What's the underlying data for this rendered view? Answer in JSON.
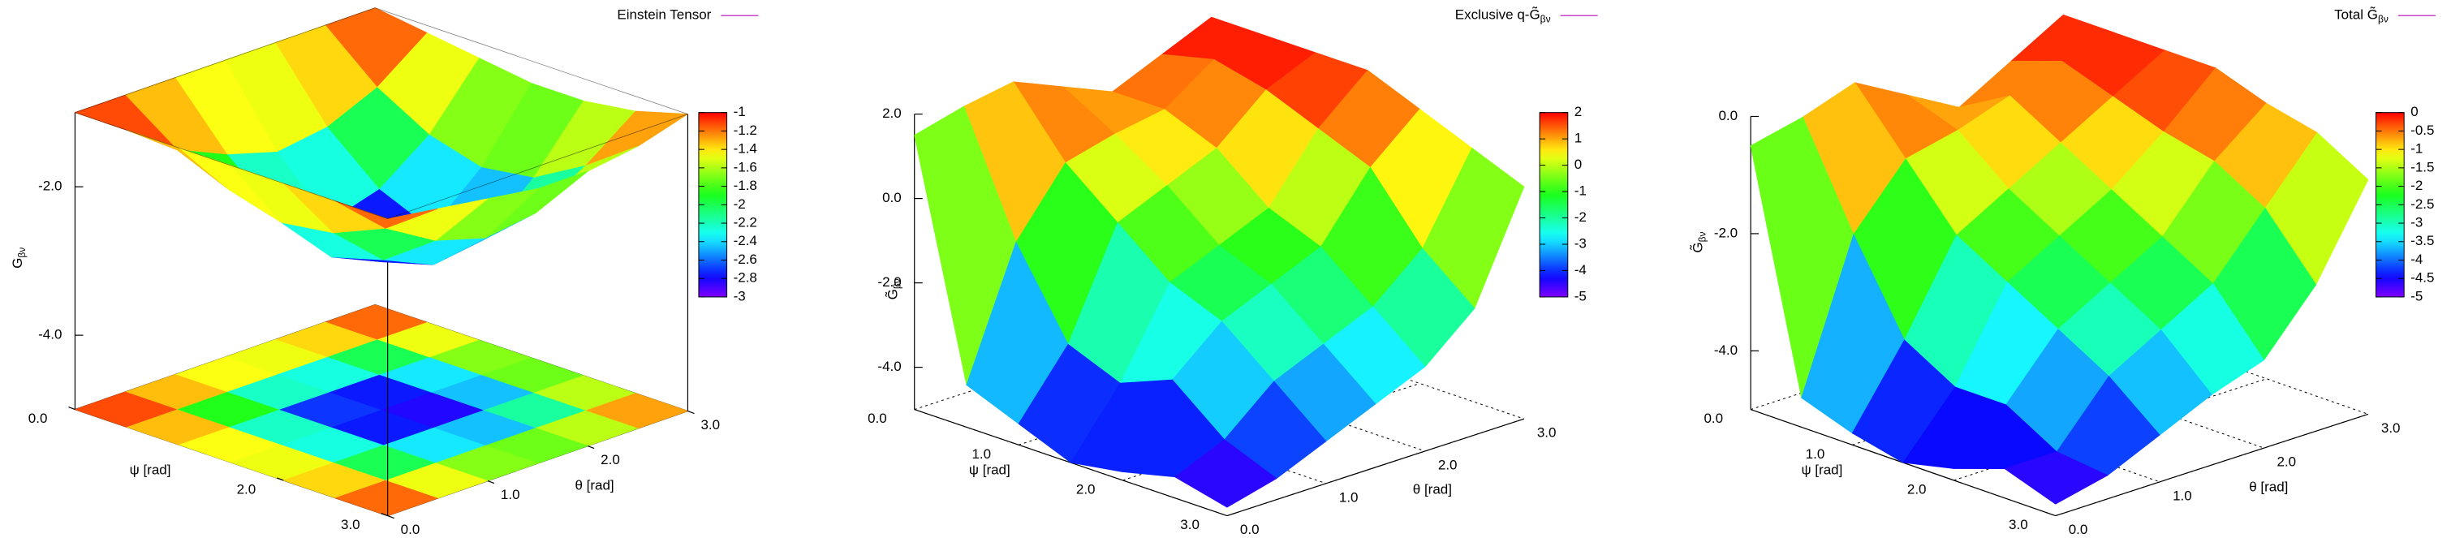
{
  "chart_data": [
    {
      "type": "surface",
      "title": "Einstein Tensor",
      "legend_color": "#cc44cc",
      "xlabel": "ψ [rad]",
      "ylabel": "θ [rad]",
      "zlabel": "G",
      "zlabel_sub": "βν",
      "x": [
        0,
        0.5,
        1,
        1.5,
        2,
        2.5,
        3
      ],
      "y": [
        0,
        0.5,
        1,
        1.5,
        2,
        2.5,
        3
      ],
      "z": [
        [
          -1,
          -1,
          -1,
          -1,
          -1,
          -1,
          -1
        ],
        [
          -1,
          -1.5,
          -1.8,
          -2,
          -1.9,
          -1.6,
          -1.1
        ],
        [
          -1,
          -1.8,
          -2.4,
          -2.7,
          -2.5,
          -2,
          -1.2
        ],
        [
          -1,
          -2,
          -2.7,
          -3,
          -2.8,
          -2.2,
          -1.3
        ],
        [
          -1,
          -1.9,
          -2.5,
          -2.8,
          -2.7,
          -2.1,
          -1.3
        ],
        [
          -1,
          -1.6,
          -2,
          -2.2,
          -2.1,
          -1.7,
          -1.2
        ],
        [
          -1,
          -1.1,
          -1.2,
          -1.3,
          -1.3,
          -1.2,
          -1
        ]
      ],
      "xlim": [
        0,
        3
      ],
      "ylim": [
        0,
        3
      ],
      "zlim": [
        -5,
        -1
      ],
      "xticks": [
        {
          "value": 0,
          "label": "0.0"
        },
        {
          "value": 2,
          "label": "2.0"
        },
        {
          "value": 3,
          "label": "3.0"
        }
      ],
      "yticks": [
        {
          "value": 0,
          "label": "0.0"
        },
        {
          "value": 1,
          "label": "1.0"
        },
        {
          "value": 2,
          "label": "2.0"
        },
        {
          "value": 3,
          "label": "3.0"
        }
      ],
      "zticks": [
        {
          "value": -4,
          "label": "-4.0"
        },
        {
          "value": -2,
          "label": "-2.0"
        }
      ],
      "cblim": [
        -3,
        -1
      ],
      "cbticks": [
        -1,
        -1.2,
        -1.4,
        -1.6,
        -1.8,
        -2,
        -2.2,
        -2.4,
        -2.6,
        -2.8,
        -3
      ],
      "colormap": "rainbow",
      "base_heatmap": true,
      "box": true
    },
    {
      "type": "surface",
      "title": "Exclusive q-G̃",
      "title_sub": "βν",
      "legend_color": "#cc44cc",
      "xlabel": "ψ [rad]",
      "ylabel": "θ [rad]",
      "zlabel": "G̃",
      "zlabel_sub": "βν",
      "x": [
        0,
        0.5,
        1,
        1.5,
        2,
        2.5,
        3
      ],
      "y": [
        0,
        0.5,
        1,
        1.5,
        2,
        2.5,
        3
      ],
      "z": [
        [
          1.5,
          1.8,
          2,
          1.5,
          1,
          1.5,
          2
        ],
        [
          -4,
          -1,
          0.5,
          0.8,
          1,
          1.8,
          2
        ],
        [
          -4.5,
          -3,
          -0.5,
          0,
          0.5,
          1.5,
          2
        ],
        [
          -5,
          -3.5,
          -1.5,
          -1,
          -0.5,
          1,
          2
        ],
        [
          -4.8,
          -3,
          -2,
          -1.5,
          -1,
          0.5,
          1.5
        ],
        [
          -4.5,
          -4,
          -3,
          -2.5,
          -2,
          -1,
          1
        ],
        [
          -4.8,
          -4.5,
          -4,
          -3.5,
          -3,
          -2,
          0.5
        ]
      ],
      "xlim": [
        0,
        3
      ],
      "ylim": [
        0,
        3
      ],
      "zlim": [
        -5,
        2
      ],
      "xticks": [
        {
          "value": 0,
          "label": "0.0"
        },
        {
          "value": 1,
          "label": "1.0"
        },
        {
          "value": 2,
          "label": "2.0"
        },
        {
          "value": 3,
          "label": "3.0"
        }
      ],
      "yticks": [
        {
          "value": 0,
          "label": "0.0"
        },
        {
          "value": 1,
          "label": "1.0"
        },
        {
          "value": 2,
          "label": "2.0"
        },
        {
          "value": 3,
          "label": "3.0"
        }
      ],
      "zticks": [
        {
          "value": -4,
          "label": "-4.0"
        },
        {
          "value": -2,
          "label": "-2.0"
        },
        {
          "value": 0,
          "label": "0.0"
        },
        {
          "value": 2,
          "label": "2.0"
        }
      ],
      "cblim": [
        -5,
        2
      ],
      "cbticks": [
        2,
        1,
        0,
        -1,
        -2,
        -3,
        -4,
        -5
      ],
      "colormap": "rainbow",
      "base_heatmap": false,
      "box": false
    },
    {
      "type": "surface",
      "title": "Total G̃",
      "title_sub": "βν",
      "legend_color": "#cc44cc",
      "xlabel": "ψ [rad]",
      "ylabel": "θ [rad]",
      "zlabel": "G̃",
      "zlabel_sub": "βν",
      "x": [
        0,
        0.5,
        1,
        1.5,
        2,
        2.5,
        3
      ],
      "y": [
        0,
        0.5,
        1,
        1.5,
        2,
        2.5,
        3
      ],
      "z": [
        [
          -0.5,
          -0.3,
          0,
          -0.5,
          -1,
          -0.5,
          0
        ],
        [
          -4.5,
          -2,
          -1,
          -0.8,
          -0.5,
          -0.2,
          0
        ],
        [
          -4.8,
          -3.5,
          -2,
          -1.5,
          -1,
          -0.5,
          0
        ],
        [
          -5,
          -4,
          -2.5,
          -2,
          -1.5,
          -0.8,
          0
        ],
        [
          -4.8,
          -4,
          -3,
          -2.5,
          -2,
          -1,
          -0.3
        ],
        [
          -4.5,
          -4.5,
          -3.5,
          -3,
          -2.5,
          -1.5,
          -0.5
        ],
        [
          -4.8,
          -4.6,
          -4.2,
          -3.8,
          -3.5,
          -2.5,
          -1
        ]
      ],
      "xlim": [
        0,
        3
      ],
      "ylim": [
        0,
        3
      ],
      "zlim": [
        -5,
        0
      ],
      "xticks": [
        {
          "value": 0,
          "label": "0.0"
        },
        {
          "value": 1,
          "label": "1.0"
        },
        {
          "value": 2,
          "label": "2.0"
        },
        {
          "value": 3,
          "label": "3.0"
        }
      ],
      "yticks": [
        {
          "value": 0,
          "label": "0.0"
        },
        {
          "value": 1,
          "label": "1.0"
        },
        {
          "value": 2,
          "label": "2.0"
        },
        {
          "value": 3,
          "label": "3.0"
        }
      ],
      "zticks": [
        {
          "value": -4,
          "label": "-4.0"
        },
        {
          "value": -2,
          "label": "-2.0"
        },
        {
          "value": 0,
          "label": "0.0"
        }
      ],
      "cblim": [
        -5,
        0
      ],
      "cbticks": [
        0,
        -0.5,
        -1,
        -1.5,
        -2,
        -2.5,
        -3,
        -3.5,
        -4,
        -4.5,
        -5
      ],
      "colormap": "rainbow",
      "base_heatmap": false,
      "box": false
    }
  ]
}
